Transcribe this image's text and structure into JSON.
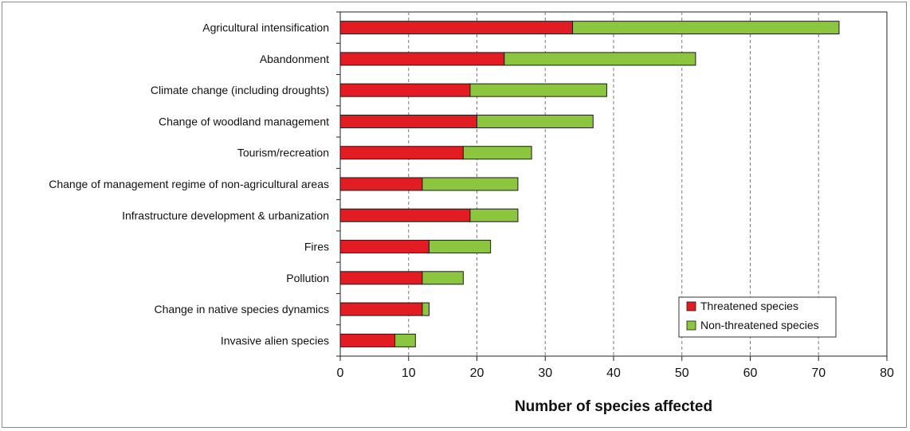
{
  "chart_data": {
    "type": "bar",
    "stacked": true,
    "orientation": "horizontal",
    "title": "",
    "xlabel": "Number of species affected",
    "ylabel": "",
    "xlim": [
      0,
      80
    ],
    "xticks": [
      0,
      10,
      20,
      30,
      40,
      50,
      60,
      70,
      80
    ],
    "grid": "vertical dashed",
    "legend_position": "bottom-right",
    "categories": [
      "Agricultural intensification",
      "Abandonment",
      "Climate change (including droughts)",
      "Change of woodland management",
      "Tourism/recreation",
      "Change of management regime of non-agricultural areas",
      "Infrastructure development & urbanization",
      "Fires",
      "Pollution",
      "Change in native species dynamics",
      "Invasive alien species"
    ],
    "series": [
      {
        "name": "Threatened species",
        "color": "#e31c24",
        "values": [
          34,
          24,
          19,
          20,
          18,
          12,
          19,
          13,
          12,
          12,
          8
        ]
      },
      {
        "name": "Non-threatened species",
        "color": "#8cc63f",
        "values": [
          39,
          28,
          20,
          17,
          10,
          14,
          7,
          9,
          6,
          1,
          3
        ]
      }
    ]
  }
}
